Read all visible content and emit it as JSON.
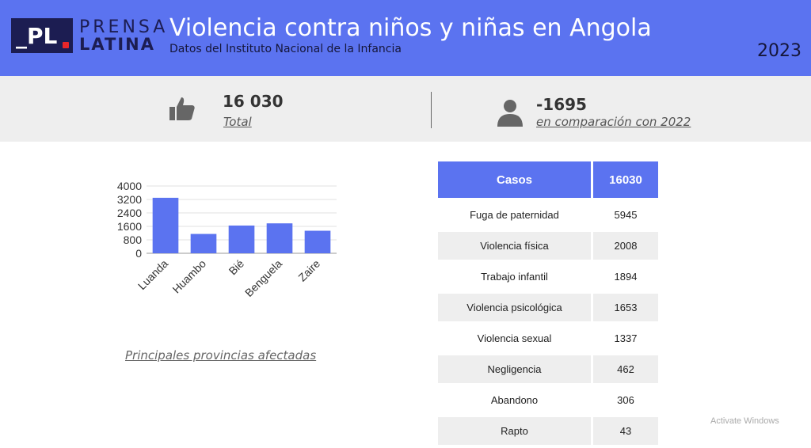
{
  "header": {
    "logo": {
      "mark": "_PL",
      "word1": "PRENSA",
      "word2": "LATINA"
    },
    "title": "Violencia contra niños y niñas en Angola",
    "subtitle": "Datos del Instituto Nacional de la Infancia",
    "year": "2023",
    "colors": {
      "banner": "#5b73f0",
      "logo_mark": "#1c1d52",
      "logo_dot": "#e8262a"
    }
  },
  "stats": [
    {
      "icon": "thumbs-up-icon",
      "value": "16 030",
      "label": "Total"
    },
    {
      "icon": "person-icon",
      "value": "-1695",
      "label": "en comparación con 2022"
    }
  ],
  "chart_data": {
    "type": "bar",
    "categories": [
      "Luanda",
      "Huambo",
      "Bié",
      "Benguela",
      "Zaire"
    ],
    "values": [
      3300,
      1150,
      1650,
      1780,
      1340
    ],
    "yticks": [
      "0",
      "800",
      "1600",
      "2400",
      "3200",
      "4000"
    ],
    "ylim": [
      0,
      4000
    ],
    "color": "#5b73f0",
    "grid": true,
    "caption": "Principales provincias afectadas"
  },
  "table": {
    "headers": [
      "Casos",
      "16030"
    ],
    "rows": [
      [
        "Fuga de paternidad",
        "5945"
      ],
      [
        "Violencia física",
        "2008"
      ],
      [
        "Trabajo infantil",
        "1894"
      ],
      [
        "Violencia psicológica",
        "1653"
      ],
      [
        "Violencia sexual",
        "1337"
      ],
      [
        "Negligencia",
        "462"
      ],
      [
        "Abandono",
        "306"
      ],
      [
        "Rapto",
        "43"
      ]
    ]
  },
  "watermark": "Activate Windows"
}
